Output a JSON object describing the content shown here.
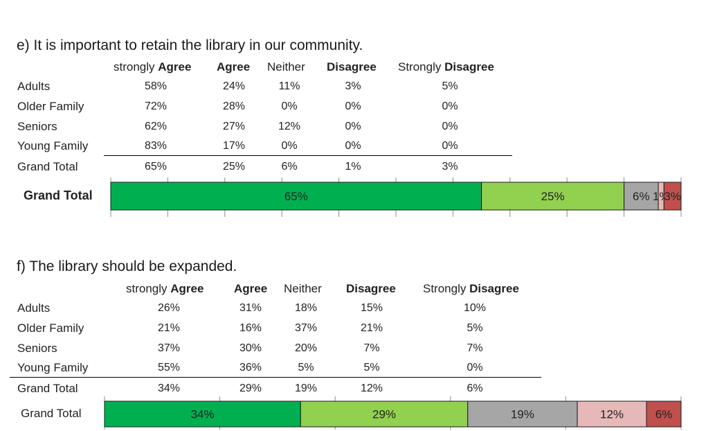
{
  "sections": [
    {
      "title": "e) It is important to retain the library in our community.",
      "headers": [
        {
          "pre": "strongly ",
          "bold": "Agree"
        },
        {
          "pre": "",
          "bold": "Agree"
        },
        {
          "pre": "Neither",
          "bold": ""
        },
        {
          "pre": "",
          "bold": "Disagree"
        },
        {
          "pre": "Strongly ",
          "bold": "Disagree"
        }
      ],
      "rows": [
        {
          "label": "Adults",
          "values": [
            "58%",
            "24%",
            "11%",
            "3%",
            "5%"
          ]
        },
        {
          "label": "Older Family",
          "values": [
            "72%",
            "28%",
            "0%",
            "0%",
            "0%"
          ]
        },
        {
          "label": "Seniors",
          "values": [
            "62%",
            "27%",
            "12%",
            "0%",
            "0%"
          ]
        },
        {
          "label": "Young Family",
          "values": [
            "83%",
            "17%",
            "0%",
            "0%",
            "0%"
          ]
        },
        {
          "label": "Grand Total",
          "values": [
            "65%",
            "25%",
            "6%",
            "1%",
            "3%"
          ]
        }
      ]
    },
    {
      "title": "f) The library should be expanded.",
      "headers": [
        {
          "pre": "strongly ",
          "bold": "Agree"
        },
        {
          "pre": "",
          "bold": "Agree"
        },
        {
          "pre": "Neither",
          "bold": ""
        },
        {
          "pre": "",
          "bold": "Disagree"
        },
        {
          "pre": "Strongly ",
          "bold": "Disagree"
        }
      ],
      "rows": [
        {
          "label": "Adults",
          "values": [
            "26%",
            "31%",
            "18%",
            "15%",
            "10%"
          ]
        },
        {
          "label": "Older Family",
          "values": [
            "21%",
            "16%",
            "37%",
            "21%",
            "5%"
          ]
        },
        {
          "label": "Seniors",
          "values": [
            "37%",
            "30%",
            "20%",
            "7%",
            "7%"
          ]
        },
        {
          "label": "Young Family",
          "values": [
            "55%",
            "36%",
            "5%",
            "5%",
            "0%"
          ]
        },
        {
          "label": "Grand Total",
          "values": [
            "34%",
            "29%",
            "19%",
            "12%",
            "6%"
          ]
        }
      ]
    }
  ],
  "chart_data": [
    {
      "type": "bar",
      "orientation": "horizontal-stacked-100",
      "categories": [
        "Grand Total"
      ],
      "series": [
        {
          "values": [
            65
          ],
          "color": "#00b050",
          "label": "65%"
        },
        {
          "values": [
            25
          ],
          "color": "#92d050",
          "label": "25%"
        },
        {
          "values": [
            6
          ],
          "color": "#a6a6a6",
          "label": "6%"
        },
        {
          "values": [
            1
          ],
          "color": "#e6b9b8",
          "label": "1%"
        },
        {
          "values": [
            3
          ],
          "color": "#c0504d",
          "label": "3%"
        }
      ],
      "xlim": [
        0,
        100
      ]
    },
    {
      "type": "bar",
      "orientation": "horizontal-stacked-100",
      "categories": [
        "Grand Total"
      ],
      "series": [
        {
          "values": [
            34
          ],
          "color": "#00b050",
          "label": "34%"
        },
        {
          "values": [
            29
          ],
          "color": "#92d050",
          "label": "29%"
        },
        {
          "values": [
            19
          ],
          "color": "#a6a6a6",
          "label": "19%"
        },
        {
          "values": [
            12
          ],
          "color": "#e6b9b8",
          "label": "12%"
        },
        {
          "values": [
            6
          ],
          "color": "#c0504d",
          "label": "6%"
        }
      ],
      "xlim": [
        0,
        100
      ]
    }
  ]
}
